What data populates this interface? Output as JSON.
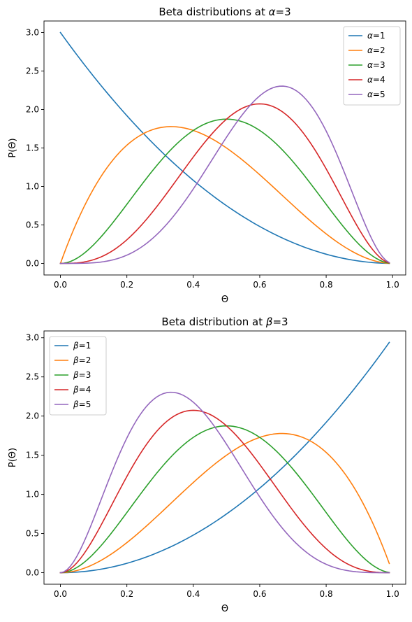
{
  "chart_data": [
    {
      "type": "line",
      "title_prefix": "Beta distributions at ",
      "title_symbol": "α",
      "title_suffix": "=3",
      "xlabel": "Θ",
      "ylabel": "P(Θ)",
      "xlim": [
        -0.0495,
        1.0395
      ],
      "ylim": [
        -0.15,
        3.15
      ],
      "xticks": [
        0.0,
        0.2,
        0.4,
        0.6,
        0.8,
        1.0
      ],
      "xtick_labels": [
        "0.0",
        "0.2",
        "0.4",
        "0.6",
        "0.8",
        "1.0"
      ],
      "yticks": [
        0.0,
        0.5,
        1.0,
        1.5,
        2.0,
        2.5,
        3.0
      ],
      "ytick_labels": [
        "0.0",
        "0.5",
        "1.0",
        "1.5",
        "2.0",
        "2.5",
        "3.0"
      ],
      "grid": false,
      "legend_position": "top-right",
      "x_range": [
        0.0,
        0.99
      ],
      "x_step": 0.01,
      "series": [
        {
          "name_symbol": "α",
          "name_suffix": "=1",
          "a": 1,
          "b": 3,
          "color": "#1f77b4"
        },
        {
          "name_symbol": "α",
          "name_suffix": "=2",
          "a": 2,
          "b": 3,
          "color": "#ff7f0e"
        },
        {
          "name_symbol": "α",
          "name_suffix": "=3",
          "a": 3,
          "b": 3,
          "color": "#2ca02c"
        },
        {
          "name_symbol": "α",
          "name_suffix": "=4",
          "a": 4,
          "b": 3,
          "color": "#d62728"
        },
        {
          "name_symbol": "α",
          "name_suffix": "=5",
          "a": 5,
          "b": 3,
          "color": "#9467bd"
        }
      ]
    },
    {
      "type": "line",
      "title_prefix": "Beta distribution at ",
      "title_symbol": "β",
      "title_suffix": "=3",
      "xlabel": "Θ",
      "ylabel": "P(Θ)",
      "xlim": [
        -0.0495,
        1.0395
      ],
      "ylim": [
        -0.147,
        3.087
      ],
      "xticks": [
        0.0,
        0.2,
        0.4,
        0.6,
        0.8,
        1.0
      ],
      "xtick_labels": [
        "0.0",
        "0.2",
        "0.4",
        "0.6",
        "0.8",
        "1.0"
      ],
      "yticks": [
        0.0,
        0.5,
        1.0,
        1.5,
        2.0,
        2.5,
        3.0
      ],
      "ytick_labels": [
        "0.0",
        "0.5",
        "1.0",
        "1.5",
        "2.0",
        "2.5",
        "3.0"
      ],
      "grid": false,
      "legend_position": "top-left",
      "x_range": [
        0.0,
        0.99
      ],
      "x_step": 0.01,
      "series": [
        {
          "name_symbol": "β",
          "name_suffix": "=1",
          "a": 3,
          "b": 1,
          "color": "#1f77b4"
        },
        {
          "name_symbol": "β",
          "name_suffix": "=2",
          "a": 3,
          "b": 2,
          "color": "#ff7f0e"
        },
        {
          "name_symbol": "β",
          "name_suffix": "=3",
          "a": 3,
          "b": 3,
          "color": "#2ca02c"
        },
        {
          "name_symbol": "β",
          "name_suffix": "=4",
          "a": 3,
          "b": 4,
          "color": "#d62728"
        },
        {
          "name_symbol": "β",
          "name_suffix": "=5",
          "a": 3,
          "b": 5,
          "color": "#9467bd"
        }
      ]
    }
  ]
}
